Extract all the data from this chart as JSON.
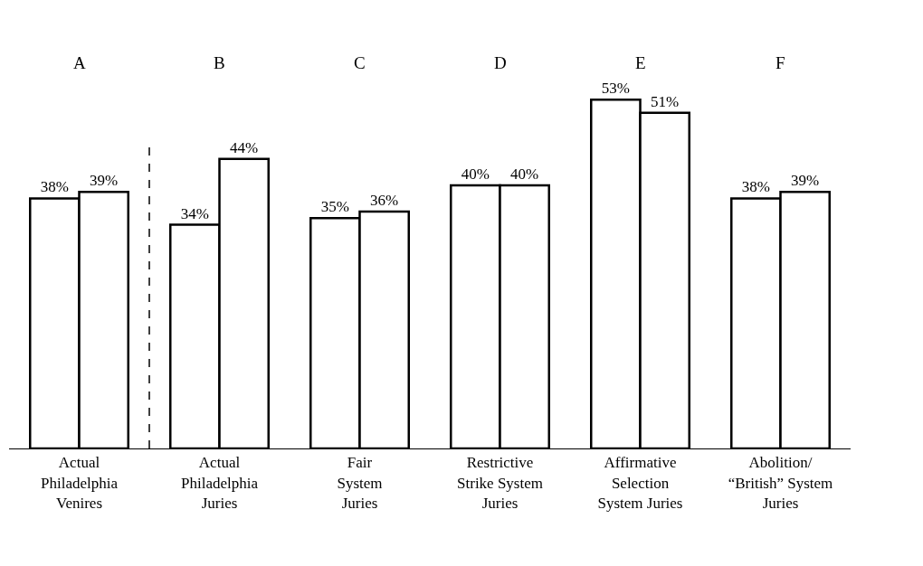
{
  "chart_data": {
    "type": "bar",
    "categories": [
      "Actual\nPhiladelphia\nVenires",
      "Actual\nPhiladelphia\nJuries",
      "Fair\nSystem\nJuries",
      "Restrictive\nStrike System\nJuries",
      "Affirmative\nSelection\nSystem Juries",
      "Abolition/\n“British” System\nJuries"
    ],
    "series": [
      {
        "color": "#ffffff",
        "values": [
          38,
          34,
          35,
          40,
          53,
          38
        ],
        "value_labels": [
          "38%",
          "34%",
          "35%",
          "40%",
          "53%",
          "38%"
        ]
      },
      {
        "color": "#ffffff",
        "values": [
          39,
          44,
          36,
          40,
          51,
          39
        ],
        "value_labels": [
          "39%",
          "44%",
          "36%",
          "40%",
          "51%",
          "39%"
        ]
      }
    ],
    "annotations": [
      "A",
      "B",
      "C",
      "D",
      "E",
      "F"
    ]
  }
}
